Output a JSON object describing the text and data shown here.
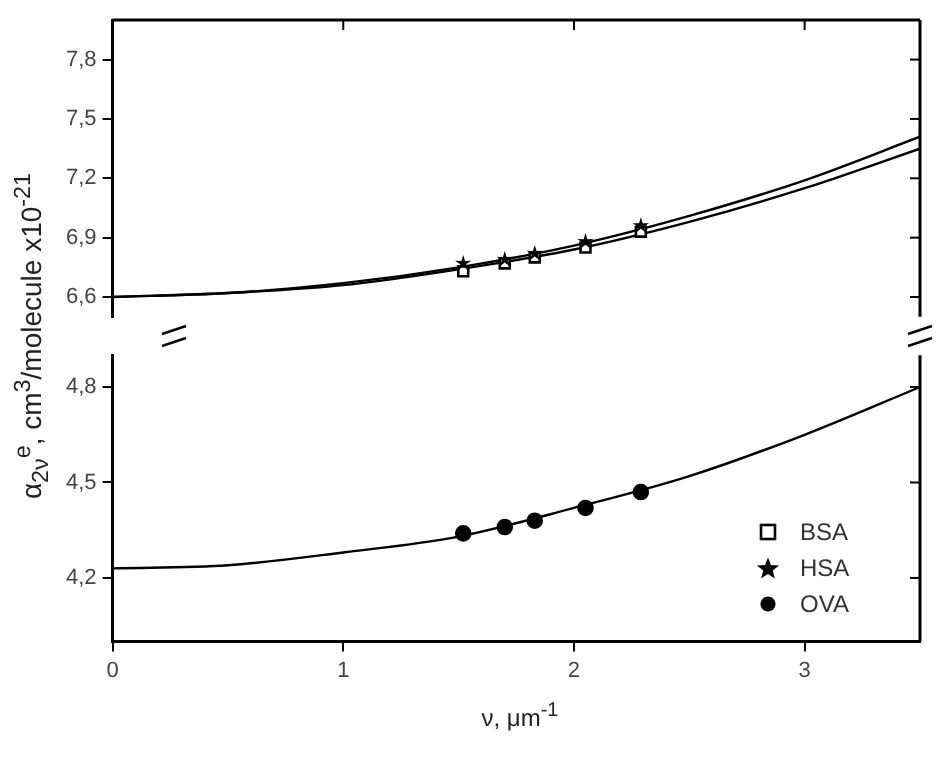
{
  "chart_data": [
    {
      "type": "scatter",
      "ylabel": "α$_{2ν}$$^{e}$, cm$^{3}$/molecule x10$^{-21}$",
      "tick_labels": "y",
      "xlim": [
        0,
        3.5
      ],
      "xticks": [
        0,
        1,
        2,
        3
      ],
      "ylim": [
        6.5,
        8.0
      ],
      "yticks": [
        {
          "value": 6.6,
          "label": "6,6"
        },
        {
          "value": 6.9,
          "label": "6,9"
        },
        {
          "value": 7.2,
          "label": "7,2"
        },
        {
          "value": 7.5,
          "label": "7,5"
        },
        {
          "value": 7.8,
          "label": "7,8"
        }
      ],
      "legend": "bottom right",
      "grid": false,
      "series": [
        {
          "name": "BSA",
          "marker": "square",
          "color": "#000000",
          "x": [
            1.52,
            1.7,
            1.83,
            2.05,
            2.29
          ],
          "values": [
            6.73,
            6.77,
            6.8,
            6.85,
            6.93
          ]
        },
        {
          "name": "HSA",
          "marker": "star",
          "color": "#000000",
          "x": [
            1.52,
            1.7,
            1.83,
            2.05,
            2.29
          ],
          "values": [
            6.77,
            6.79,
            6.82,
            6.88,
            6.96
          ]
        },
        {
          "type": "line",
          "marker": "none",
          "color": "#000000",
          "x": [
            0,
            0.5,
            1,
            1.5,
            2,
            2.5,
            3,
            3.5
          ],
          "values": [
            6.6,
            6.62,
            6.66,
            6.74,
            6.84,
            6.98,
            7.15,
            7.35
          ]
        },
        {
          "type": "line",
          "marker": "none",
          "color": "#000000",
          "x": [
            0,
            0.5,
            1,
            1.5,
            2,
            2.5,
            3,
            3.5
          ],
          "values": [
            6.6,
            6.62,
            6.67,
            6.75,
            6.86,
            7.01,
            7.19,
            7.41
          ]
        }
      ]
    },
    {
      "type": "scatter",
      "xlabel": "ν, μm$^{-1}$",
      "xlim": [
        0,
        3.5
      ],
      "xticks": [
        0,
        1,
        2,
        3
      ],
      "ylim": [
        4.0,
        4.9
      ],
      "yticks": [
        {
          "value": 4.2,
          "label": "4,2"
        },
        {
          "value": 4.5,
          "label": "4,5"
        },
        {
          "value": 4.8,
          "label": "4,8"
        }
      ],
      "legend": "bottom right",
      "grid": false,
      "series": [
        {
          "name": "OVA",
          "marker": "circle",
          "color": "#000000",
          "x": [
            1.52,
            1.7,
            1.83,
            2.05,
            2.29
          ],
          "values": [
            4.34,
            4.36,
            4.38,
            4.42,
            4.47
          ]
        },
        {
          "type": "line",
          "marker": "none",
          "color": "#000000",
          "x": [
            0,
            0.5,
            1,
            1.5,
            2,
            2.5,
            3,
            3.5
          ],
          "values": [
            4.23,
            4.24,
            4.28,
            4.33,
            4.42,
            4.52,
            4.65,
            4.8
          ]
        }
      ]
    }
  ]
}
